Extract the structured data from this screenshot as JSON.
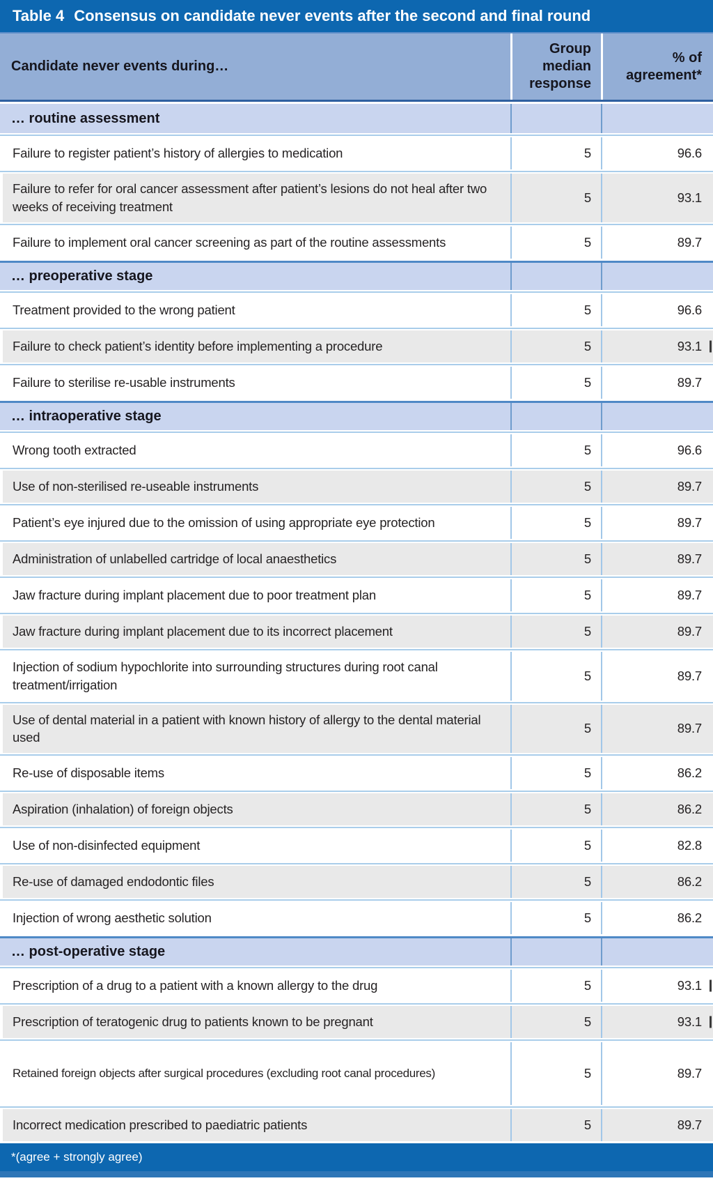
{
  "table": {
    "title_label": "Table 4",
    "title_text": "Consensus on candidate never events after the second and final round",
    "columns": {
      "event": "Candidate never events during…",
      "median": "Group median response",
      "agreement": "% of agreement*"
    },
    "footnote": "*(agree + strongly agree)",
    "colors": {
      "band_dark_blue": "#0d67b0",
      "column_header_blue": "#93aed6",
      "section_band_blue": "#c9d5ef",
      "row_alt_gray": "#e9e9e9",
      "separator_blue": "#a9cdea",
      "divider_blue": "#a2c7e8",
      "header_border_blue": "#2e5f9f"
    },
    "sections": [
      {
        "label": "… routine assessment",
        "rows": [
          {
            "event": "Failure to register patient’s history of allergies to medication",
            "median": "5",
            "agreement": "96.6"
          },
          {
            "event": "Failure to refer for oral cancer assessment after patient’s lesions do not heal after two weeks of receiving treatment",
            "median": "5",
            "agreement": "93.1"
          },
          {
            "event": "Failure to implement oral cancer screening as part of the routine assessments",
            "median": "5",
            "agreement": "89.7"
          }
        ]
      },
      {
        "label": "… preoperative stage",
        "rows": [
          {
            "event": "Treatment provided to the wrong patient",
            "median": "5",
            "agreement": "96.6"
          },
          {
            "event": "Failure to check patient’s identity before implementing a procedure",
            "median": "5",
            "agreement": "93.1",
            "edge_mark": true
          },
          {
            "event": "Failure to sterilise re-usable instruments",
            "median": "5",
            "agreement": "89.7"
          }
        ]
      },
      {
        "label": "… intraoperative stage",
        "rows": [
          {
            "event": "Wrong tooth extracted",
            "median": "5",
            "agreement": "96.6"
          },
          {
            "event": "Use of non-sterilised re-useable instruments",
            "median": "5",
            "agreement": "89.7"
          },
          {
            "event": "Patient’s eye injured due to the omission of using appropriate eye protection",
            "median": "5",
            "agreement": "89.7"
          },
          {
            "event": "Administration of unlabelled cartridge of local anaesthetics",
            "median": "5",
            "agreement": "89.7"
          },
          {
            "event": "Jaw fracture during implant placement due to poor treatment plan",
            "median": "5",
            "agreement": "89.7"
          },
          {
            "event": "Jaw fracture during implant placement due to its incorrect placement",
            "median": "5",
            "agreement": "89.7"
          },
          {
            "event": "Injection of sodium hypochlorite into surrounding structures during root canal treatment/irrigation",
            "median": "5",
            "agreement": "89.7"
          },
          {
            "event": "Use of dental material in a patient with known history of allergy to the dental material used",
            "median": "5",
            "agreement": "89.7"
          },
          {
            "event": "Re-use of disposable items",
            "median": "5",
            "agreement": "86.2"
          },
          {
            "event": "Aspiration (inhalation) of foreign objects",
            "median": "5",
            "agreement": "86.2"
          },
          {
            "event": "Use of non-disinfected equipment",
            "median": "5",
            "agreement": "82.8"
          },
          {
            "event": "Re-use of damaged endodontic files",
            "median": "5",
            "agreement": "86.2"
          },
          {
            "event": "Injection of wrong aesthetic solution",
            "median": "5",
            "agreement": "86.2"
          }
        ]
      },
      {
        "label": "… post-operative stage",
        "rows": [
          {
            "event": "Prescription of a drug to a patient with a known allergy to the drug",
            "median": "5",
            "agreement": "93.1",
            "edge_mark": true
          },
          {
            "event": "Prescription of teratogenic drug to patients known to be pregnant",
            "median": "5",
            "agreement": "93.1",
            "edge_mark": true
          },
          {
            "event": "Retained foreign objects after surgical procedures (excluding root canal procedures)",
            "median": "5",
            "agreement": "89.7",
            "tall": true,
            "tight": true
          },
          {
            "event": "Incorrect medication prescribed to paediatric patients",
            "median": "5",
            "agreement": "89.7"
          }
        ]
      }
    ]
  }
}
